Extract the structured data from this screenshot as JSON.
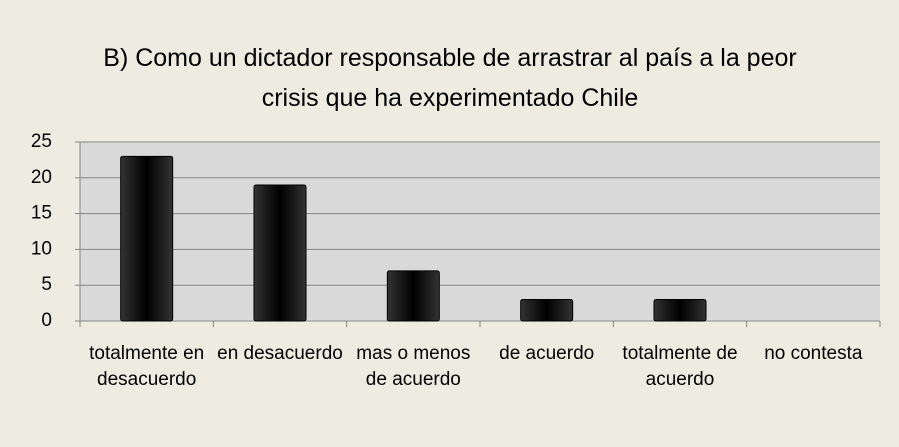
{
  "chart_data": {
    "type": "bar",
    "title": "B) Como un dictador responsable de arrastrar al país a la peor crisis que ha experimentado Chile",
    "categories": [
      "totalmente en desacuerdo",
      "en desacuerdo",
      "mas o menos de acuerdo",
      "de acuerdo",
      "totalmente de acuerdo",
      "no contesta"
    ],
    "values": [
      23,
      19,
      7,
      3,
      3,
      0
    ],
    "color": "#000000",
    "ylim": [
      0,
      25
    ],
    "yticks": [
      0,
      5,
      10,
      15,
      20,
      25
    ],
    "grid": true
  }
}
